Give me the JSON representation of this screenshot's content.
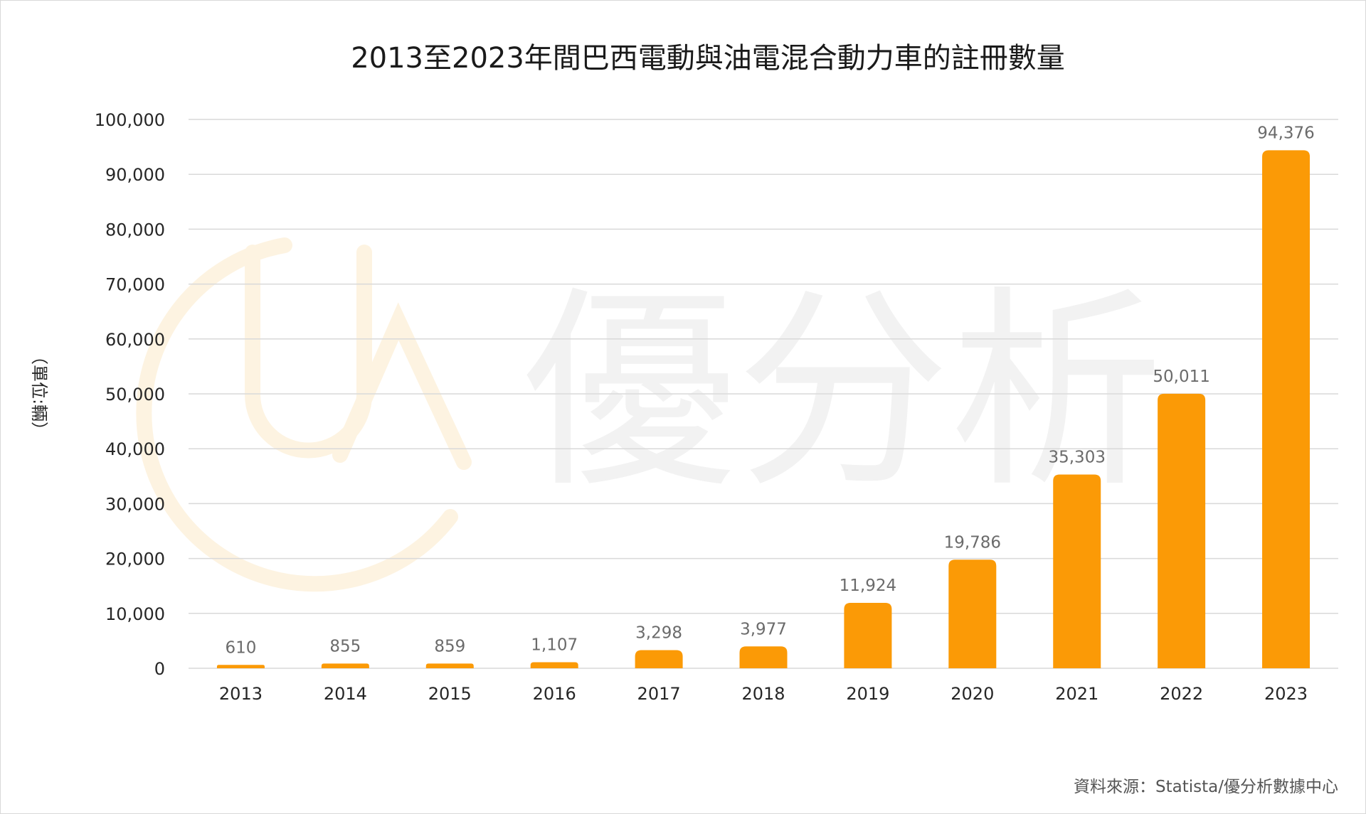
{
  "chart_data": {
    "type": "bar",
    "title": "2013至2023年間巴西電動與油電混合動力車的註冊數量",
    "ylabel": "（單位:輛）",
    "xlabel": "",
    "categories": [
      "2013",
      "2014",
      "2015",
      "2016",
      "2017",
      "2018",
      "2019",
      "2020",
      "2021",
      "2022",
      "2023"
    ],
    "values": [
      610,
      855,
      859,
      1107,
      3298,
      3977,
      11924,
      19786,
      35303,
      50011,
      94376
    ],
    "value_labels": [
      "610",
      "855",
      "859",
      "1,107",
      "3,298",
      "3,977",
      "11,924",
      "19,786",
      "35,303",
      "50,011",
      "94,376"
    ],
    "ylim": [
      0,
      100000
    ],
    "yticks": [
      0,
      10000,
      20000,
      30000,
      40000,
      50000,
      60000,
      70000,
      80000,
      90000,
      100000
    ],
    "ytick_labels": [
      "0",
      "10,000",
      "20,000",
      "30,000",
      "40,000",
      "50,000",
      "60,000",
      "70,000",
      "80,000",
      "90,000",
      "100,000"
    ],
    "grid": true,
    "legend": "none",
    "bar_color": "#fb9a06",
    "grid_color": "#d9d9d9"
  },
  "source_note": "資料來源：Statista/優分析數據中心",
  "watermark": {
    "logo_letters": "UA",
    "text": "優分析",
    "logo_color": "#fdf3e1",
    "text_color": "#f2f2f2"
  }
}
